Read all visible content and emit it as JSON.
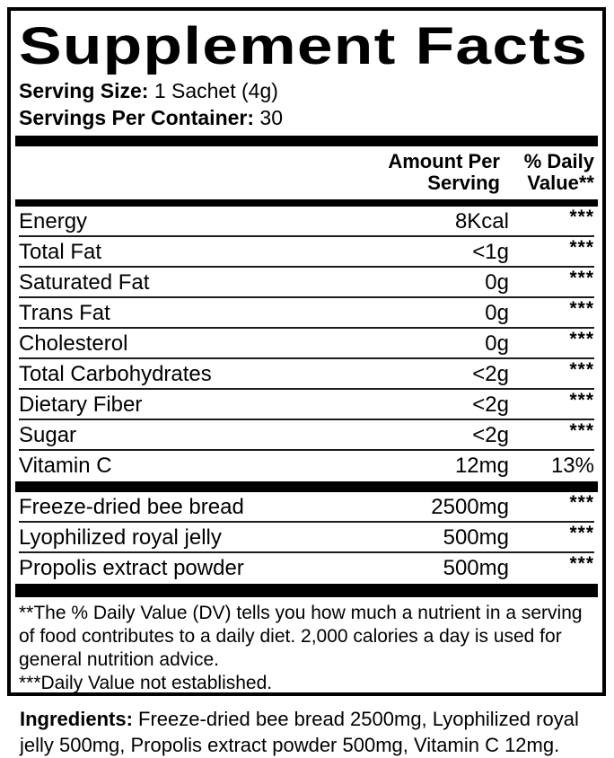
{
  "panel": {
    "title": "Supplement Facts",
    "serving_size": {
      "label": "Serving Size:",
      "value": "1 Sachet (4g)"
    },
    "servings_per_container": {
      "label": "Servings Per Container:",
      "value": "30"
    },
    "columns": {
      "amount": "Amount Per Serving",
      "daily_value": "% Daily Value**"
    },
    "nutrient_rows": [
      {
        "name": "Energy",
        "amount": "8Kcal",
        "dv": "***"
      },
      {
        "name": "Total Fat",
        "amount": "<1g",
        "dv": "***"
      },
      {
        "name": "Saturated Fat",
        "amount": "0g",
        "dv": "***"
      },
      {
        "name": "Trans Fat",
        "amount": "0g",
        "dv": "***"
      },
      {
        "name": "Cholesterol",
        "amount": "0g",
        "dv": "***"
      },
      {
        "name": "Total Carbohydrates",
        "amount": "<2g",
        "dv": "***"
      },
      {
        "name": "Dietary Fiber",
        "amount": "<2g",
        "dv": "***"
      },
      {
        "name": "Sugar",
        "amount": "<2g",
        "dv": "***"
      },
      {
        "name": "Vitamin C",
        "amount": "12mg",
        "dv": "13%"
      }
    ],
    "ingredient_rows": [
      {
        "name": "Freeze-dried bee bread",
        "amount": "2500mg",
        "dv": "***"
      },
      {
        "name": "Lyophilized royal jelly",
        "amount": "500mg",
        "dv": "***"
      },
      {
        "name": "Propolis extract powder",
        "amount": "500mg",
        "dv": "***"
      }
    ],
    "footnotes": [
      "**The % Daily Value (DV) tells you how much a nutrient in a serving of food contributes to a daily diet. 2,000 calories a day is used for general nutrition advice.",
      "***Daily Value not established."
    ],
    "colors": {
      "text": "#000000",
      "background": "#ffffff"
    }
  },
  "ingredients": {
    "label": "Ingredients:",
    "text": "Freeze-dried bee bread 2500mg, Lyophilized royal jelly 500mg, Propolis extract powder 500mg, Vitamin C 12mg."
  }
}
